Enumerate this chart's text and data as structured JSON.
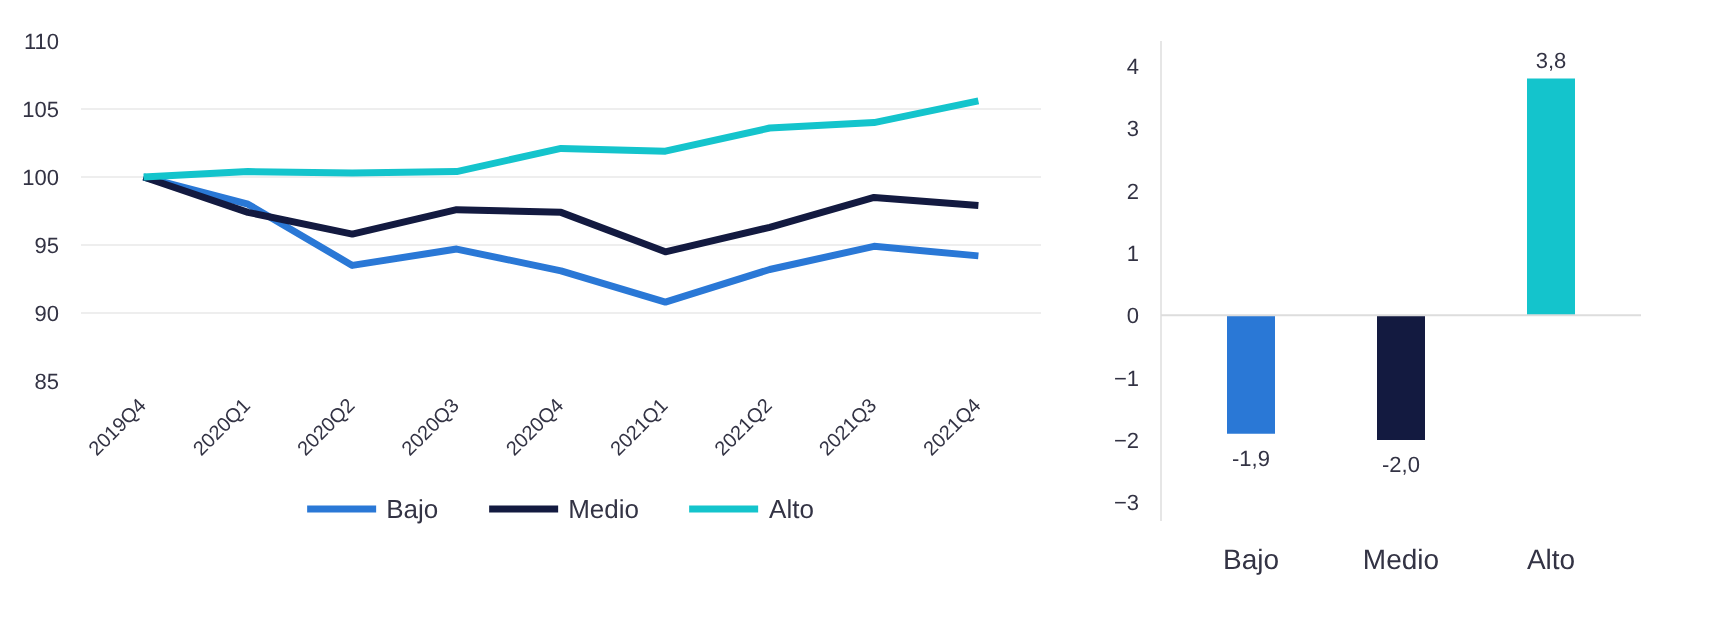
{
  "chart_data": [
    {
      "type": "line",
      "categories": [
        "2019Q4",
        "2020Q1",
        "2020Q2",
        "2020Q3",
        "2020Q4",
        "2021Q1",
        "2021Q2",
        "2021Q3",
        "2021Q4"
      ],
      "series": [
        {
          "name": "Bajo",
          "color": "#2a78d6",
          "values": [
            100,
            98.0,
            93.5,
            94.7,
            93.1,
            90.8,
            93.2,
            94.9,
            94.2
          ]
        },
        {
          "name": "Medio",
          "color": "#131a40",
          "values": [
            100,
            97.4,
            95.8,
            97.6,
            97.4,
            94.5,
            96.3,
            98.5,
            97.9
          ]
        },
        {
          "name": "Alto",
          "color": "#14c4cc",
          "values": [
            100,
            100.4,
            100.3,
            100.4,
            102.1,
            101.9,
            103.6,
            104.0,
            105.6
          ]
        }
      ],
      "ylim": [
        85,
        110
      ],
      "yticks": [
        85,
        90,
        95,
        100,
        105,
        110
      ],
      "grid": "y",
      "legend": "bottom",
      "line_style": "solid",
      "marker": "none"
    },
    {
      "type": "bar",
      "categories": [
        "Bajo",
        "Medio",
        "Alto"
      ],
      "values": [
        -1.9,
        -2.0,
        3.8
      ],
      "colors": [
        "#2a78d6",
        "#131a40",
        "#14c4cc"
      ],
      "value_labels": [
        "-1,9",
        "-2,0",
        "3,8"
      ],
      "ylim": [
        -3.3,
        4.4
      ],
      "yticks": [
        -3,
        -2,
        -1,
        0,
        1,
        2,
        3,
        4
      ],
      "grid": false,
      "ref_lines": [
        {
          "axis": "y",
          "value": 0,
          "color": "#dddddd"
        }
      ]
    }
  ]
}
